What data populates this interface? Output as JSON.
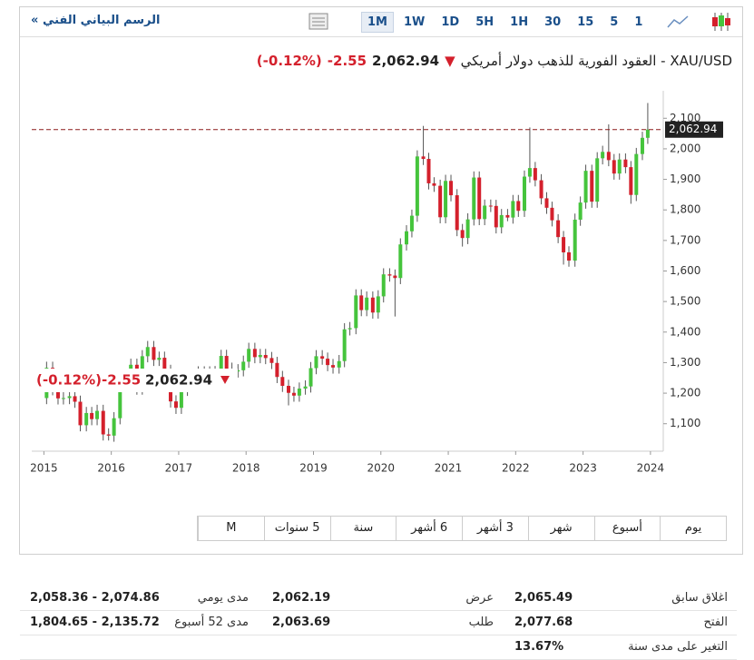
{
  "toolbar": {
    "title": "الرسم البياني الفني",
    "collapse": "«",
    "intervals": [
      "1M",
      "1W",
      "1D",
      "5H",
      "1H",
      "30",
      "15",
      "5",
      "1"
    ],
    "active_interval": 0
  },
  "quote": {
    "name": "XAU/USD - العقود الفورية للذهب دولار أمريكي",
    "price": "2,062.94",
    "change": "-2.55",
    "change_pct": "(-0.12%)"
  },
  "chart_data": {
    "type": "candlestick",
    "up_color": "#45c43c",
    "down_color": "#d4202c",
    "wick_color": "#555555",
    "xlim": [
      2014.82,
      2024.19
    ],
    "xticks": [
      2015,
      2016,
      2017,
      2018,
      2019,
      2020,
      2021,
      2022,
      2023,
      2024
    ],
    "ylim": [
      1010,
      2190
    ],
    "yticks": [
      {
        "value": 1100,
        "label": "1,100"
      },
      {
        "value": 1200,
        "label": "1,200"
      },
      {
        "value": 1300,
        "label": "1,300"
      },
      {
        "value": 1400,
        "label": "1,400"
      },
      {
        "value": 1500,
        "label": "1,500"
      },
      {
        "value": 1600,
        "label": "1,600"
      },
      {
        "value": 1700,
        "label": "1,700"
      },
      {
        "value": 1800,
        "label": "1,800"
      },
      {
        "value": 1900,
        "label": "1,900"
      },
      {
        "value": 2000,
        "label": "2,000"
      },
      {
        "value": 2100,
        "label": "2,100"
      }
    ],
    "last_price": {
      "value": 2062.94,
      "label": "2,062.94"
    },
    "x": [
      2015.04,
      2015.13,
      2015.21,
      2015.29,
      2015.38,
      2015.46,
      2015.54,
      2015.63,
      2015.71,
      2015.79,
      2015.88,
      2015.96,
      2016.04,
      2016.13,
      2016.21,
      2016.29,
      2016.38,
      2016.46,
      2016.54,
      2016.63,
      2016.71,
      2016.79,
      2016.88,
      2016.96,
      2017.04,
      2017.13,
      2017.21,
      2017.29,
      2017.38,
      2017.46,
      2017.54,
      2017.63,
      2017.71,
      2017.79,
      2017.88,
      2017.96,
      2018.04,
      2018.13,
      2018.21,
      2018.29,
      2018.38,
      2018.46,
      2018.54,
      2018.63,
      2018.71,
      2018.79,
      2018.88,
      2018.96,
      2019.04,
      2019.13,
      2019.21,
      2019.29,
      2019.38,
      2019.46,
      2019.54,
      2019.63,
      2019.71,
      2019.79,
      2019.88,
      2019.96,
      2020.04,
      2020.13,
      2020.21,
      2020.29,
      2020.38,
      2020.46,
      2020.54,
      2020.63,
      2020.71,
      2020.79,
      2020.88,
      2020.96,
      2021.04,
      2021.13,
      2021.21,
      2021.29,
      2021.38,
      2021.46,
      2021.54,
      2021.63,
      2021.71,
      2021.79,
      2021.88,
      2021.96,
      2022.04,
      2022.13,
      2022.21,
      2022.29,
      2022.38,
      2022.46,
      2022.54,
      2022.63,
      2022.71,
      2022.79,
      2022.88,
      2022.96,
      2023.04,
      2023.13,
      2023.21,
      2023.29,
      2023.38,
      2023.46,
      2023.54,
      2023.63,
      2023.71,
      2023.79,
      2023.88,
      2023.96
    ],
    "open": [
      1184,
      1283,
      1213,
      1183,
      1184,
      1190,
      1172,
      1095,
      1135,
      1115,
      1142,
      1065,
      1061,
      1118,
      1238,
      1234,
      1293,
      1215,
      1321,
      1351,
      1309,
      1316,
      1273,
      1173,
      1152,
      1211,
      1250,
      1249,
      1268,
      1268,
      1242,
      1269,
      1322,
      1280,
      1271,
      1275,
      1303,
      1345,
      1318,
      1325,
      1315,
      1299,
      1253,
      1224,
      1201,
      1192,
      1215,
      1222,
      1282,
      1321,
      1313,
      1292,
      1284,
      1305,
      1409,
      1413,
      1520,
      1472,
      1513,
      1464,
      1517,
      1589,
      1585,
      1577,
      1687,
      1730,
      1781,
      1975,
      1967,
      1887,
      1879,
      1776,
      1895,
      1848,
      1734,
      1708,
      1769,
      1906,
      1770,
      1814,
      1813,
      1743,
      1783,
      1775,
      1829,
      1797,
      1909,
      1937,
      1897,
      1838,
      1807,
      1766,
      1711,
      1661,
      1634,
      1768,
      1824,
      1928,
      1827,
      1969,
      1990,
      1963,
      1919,
      1965,
      1940,
      1849,
      1983,
      2036
    ],
    "high": [
      1303,
      1303,
      1233,
      1204,
      1210,
      1210,
      1192,
      1155,
      1155,
      1162,
      1162,
      1085,
      1138,
      1258,
      1258,
      1313,
      1313,
      1341,
      1371,
      1371,
      1336,
      1336,
      1293,
      1193,
      1231,
      1270,
      1270,
      1288,
      1288,
      1288,
      1289,
      1342,
      1342,
      1300,
      1295,
      1323,
      1365,
      1365,
      1345,
      1345,
      1335,
      1319,
      1273,
      1244,
      1221,
      1235,
      1242,
      1302,
      1341,
      1341,
      1333,
      1312,
      1325,
      1429,
      1433,
      1540,
      1540,
      1533,
      1533,
      1537,
      1609,
      1609,
      1605,
      1707,
      1750,
      1801,
      1995,
      2075,
      1987,
      1907,
      1899,
      1915,
      1915,
      1868,
      1754,
      1789,
      1926,
      1926,
      1834,
      1834,
      1833,
      1803,
      1803,
      1849,
      1849,
      1929,
      2070,
      1957,
      1917,
      1858,
      1827,
      1786,
      1731,
      1681,
      1788,
      1844,
      1948,
      1948,
      1989,
      2010,
      2080,
      1983,
      1985,
      1985,
      1960,
      2003,
      2056,
      2150
    ],
    "low": [
      1164,
      1193,
      1163,
      1163,
      1164,
      1152,
      1075,
      1075,
      1095,
      1095,
      1045,
      1045,
      1041,
      1098,
      1214,
      1214,
      1195,
      1195,
      1301,
      1289,
      1289,
      1253,
      1153,
      1132,
      1132,
      1191,
      1229,
      1229,
      1248,
      1222,
      1222,
      1249,
      1260,
      1251,
      1251,
      1255,
      1283,
      1298,
      1298,
      1295,
      1279,
      1233,
      1204,
      1160,
      1172,
      1172,
      1195,
      1202,
      1262,
      1293,
      1272,
      1264,
      1264,
      1285,
      1389,
      1393,
      1452,
      1452,
      1444,
      1444,
      1497,
      1565,
      1451,
      1557,
      1667,
      1710,
      1761,
      1947,
      1867,
      1859,
      1756,
      1756,
      1828,
      1714,
      1680,
      1688,
      1749,
      1750,
      1750,
      1793,
      1723,
      1723,
      1763,
      1755,
      1777,
      1777,
      1889,
      1877,
      1818,
      1787,
      1746,
      1691,
      1621,
      1614,
      1614,
      1748,
      1804,
      1807,
      1807,
      1949,
      1943,
      1899,
      1899,
      1920,
      1820,
      1829,
      1963,
      2016
    ],
    "close": [
      1283,
      1213,
      1183,
      1184,
      1190,
      1172,
      1095,
      1135,
      1115,
      1142,
      1065,
      1061,
      1118,
      1238,
      1234,
      1293,
      1215,
      1321,
      1351,
      1309,
      1316,
      1273,
      1173,
      1152,
      1211,
      1250,
      1249,
      1268,
      1268,
      1242,
      1269,
      1322,
      1280,
      1271,
      1275,
      1303,
      1345,
      1318,
      1325,
      1315,
      1299,
      1253,
      1224,
      1201,
      1192,
      1215,
      1222,
      1282,
      1321,
      1313,
      1292,
      1284,
      1305,
      1409,
      1413,
      1520,
      1472,
      1513,
      1464,
      1517,
      1589,
      1585,
      1577,
      1687,
      1730,
      1781,
      1975,
      1967,
      1887,
      1879,
      1776,
      1895,
      1848,
      1734,
      1708,
      1769,
      1906,
      1770,
      1814,
      1813,
      1743,
      1783,
      1775,
      1829,
      1797,
      1909,
      1937,
      1897,
      1838,
      1807,
      1766,
      1711,
      1661,
      1634,
      1768,
      1824,
      1928,
      1827,
      1969,
      1990,
      1963,
      1919,
      1965,
      1940,
      1849,
      1983,
      2036,
      2063
    ]
  },
  "ranges": [
    "يوم",
    "أسبوع",
    "شهر",
    "3 أشهر",
    "6 أشهر",
    "سنة",
    "5 سنوات",
    "M"
  ],
  "stats": [
    [
      {
        "label": "اغلاق سابق",
        "value": "2,065.49"
      },
      {
        "label": "عرض",
        "value": "2,062.19"
      },
      {
        "label": "مدى يومي",
        "value": "2,058.36 - 2,074.86"
      }
    ],
    [
      {
        "label": "الفتح",
        "value": "2,077.68"
      },
      {
        "label": "طلب",
        "value": "2,063.69"
      },
      {
        "label": "مدى 52 أسبوع",
        "value": "1,804.65 - 2,135.72"
      }
    ],
    [
      {
        "label": "التغير على مدى سنة",
        "value": "13.67%"
      }
    ]
  ]
}
